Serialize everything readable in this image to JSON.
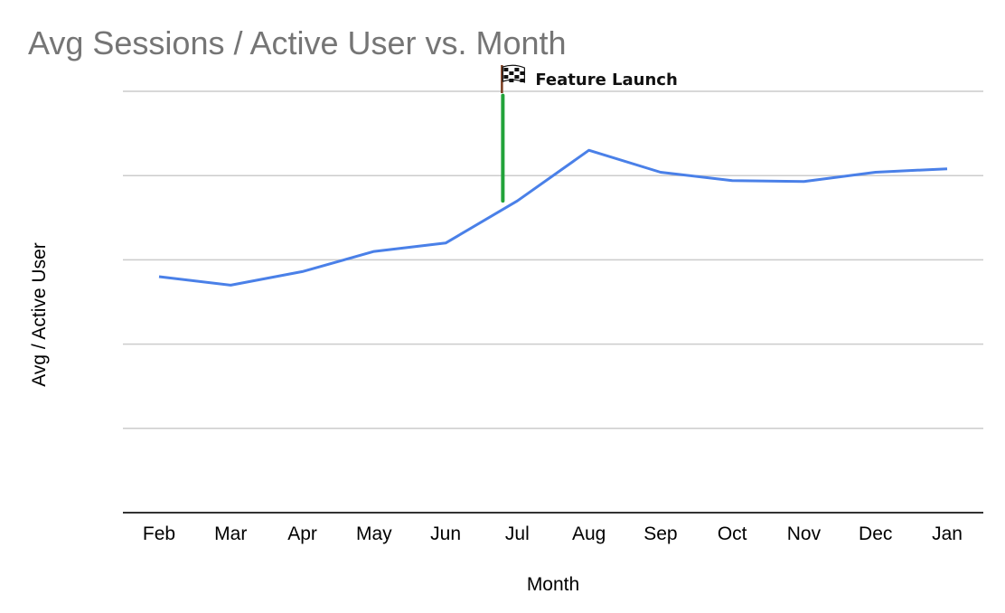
{
  "chart_data": {
    "type": "line",
    "title": "Avg Sessions / Active User vs. Month",
    "xlabel": "Month",
    "ylabel": "Avg / Active User",
    "categories": [
      "Feb",
      "Mar",
      "Apr",
      "May",
      "Jun",
      "Jul",
      "Aug",
      "Sep",
      "Oct",
      "Nov",
      "Dec",
      "Jan"
    ],
    "series": [
      {
        "name": "Avg / Active User",
        "values": [
          2.8,
          2.7,
          2.86,
          3.1,
          3.2,
          3.7,
          4.3,
          4.04,
          3.94,
          3.93,
          4.04,
          4.08
        ]
      }
    ],
    "ylim": [
      0,
      5
    ],
    "yticks": [
      1,
      2,
      3,
      4,
      5
    ],
    "ytick_labels_visible": false,
    "grid": true,
    "colors": {
      "line": "#4a80e8",
      "grid": "#cccccc",
      "axis": "#333333",
      "marker": "#22a33a"
    },
    "annotation": {
      "label": "Feature Launch",
      "icon": "checkered-flag-icon",
      "category": "Jul",
      "y_from": 3.7,
      "y_to": 4.95
    }
  }
}
